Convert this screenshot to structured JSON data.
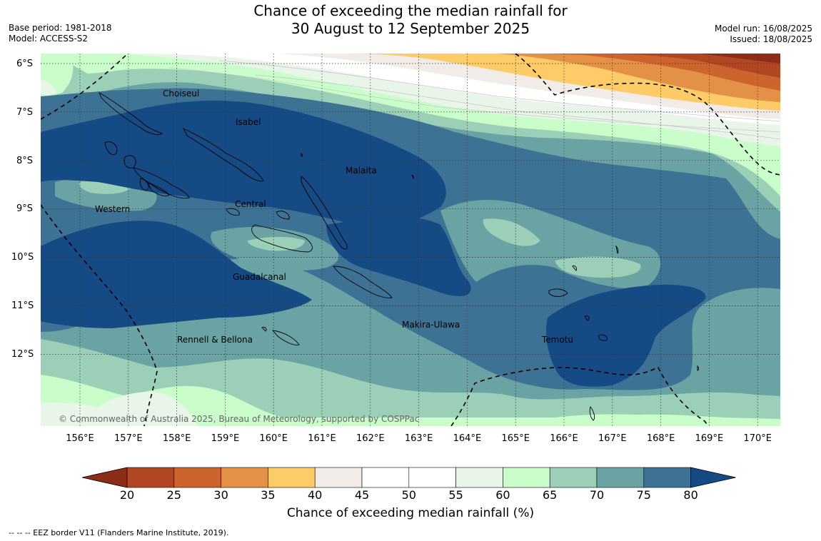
{
  "title": {
    "line1": "Chance of exceeding the median rainfall for",
    "line2": "30 August to 12 September 2025"
  },
  "meta_left": {
    "base_period": "Base period: 1981-2018",
    "model": "Model: ACCESS-S2"
  },
  "meta_right": {
    "model_run": "Model run: 16/08/2025",
    "issued": "Issued: 18/08/2025"
  },
  "axes": {
    "lat_labels": [
      "6°S",
      "7°S",
      "8°S",
      "9°S",
      "10°S",
      "11°S",
      "12°S"
    ],
    "lon_labels": [
      "156°E",
      "157°E",
      "158°E",
      "159°E",
      "160°E",
      "161°E",
      "162°E",
      "163°E",
      "164°E",
      "165°E",
      "166°E",
      "167°E",
      "168°E",
      "169°E",
      "170°E"
    ]
  },
  "regions": [
    "Choiseul",
    "Isabel",
    "Malaita",
    "Western",
    "Central",
    "Guadalcanal",
    "Makira-Ulawa",
    "Rennell & Bellona",
    "Temotu"
  ],
  "copyright": "© Commonwealth of Australia 2025, Bureau of Meteorology, supported by COSPPac",
  "colorbar": {
    "ticks": [
      "20",
      "25",
      "30",
      "35",
      "40",
      "45",
      "50",
      "55",
      "60",
      "65",
      "70",
      "75",
      "80"
    ],
    "colors": [
      "#8c2d17",
      "#b14623",
      "#cd632d",
      "#e39146",
      "#fdcb67",
      "#f1ece7",
      "#ffffff",
      "#ffffff",
      "#e8f5e8",
      "#c9fdc9",
      "#9ccfb7",
      "#6ba2a4",
      "#3e7295",
      "#164a85"
    ],
    "label": "Chance of exceeding median rainfall (%)"
  },
  "footnote": "--  --  -- EEZ border V11 (Flanders Marine Institute, 2019)."
}
